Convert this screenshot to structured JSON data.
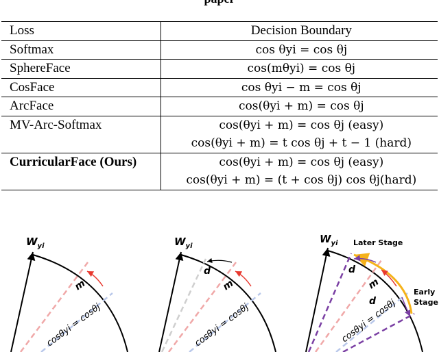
{
  "caption_top": "paper",
  "table": {
    "headers": [
      "Loss",
      "Decision Boundary"
    ],
    "rows": [
      {
        "loss": "Softmax",
        "boundary": "cos θyi = cos θj"
      },
      {
        "loss": "SphereFace",
        "boundary": "cos(mθyi) = cos θj"
      },
      {
        "loss": "CosFace",
        "boundary": "cos θyi − m = cos θj"
      },
      {
        "loss": "ArcFace",
        "boundary": "cos(θyi + m) = cos θj"
      },
      {
        "loss": "MV-Arc-Softmax",
        "boundary": "cos(θyi + m) = cos θj (easy)",
        "boundary2": "cos(θyi + m) = t cos θj + t − 1 (hard)"
      },
      {
        "loss": "CurricularFace (Ours)",
        "boundary": "cos(θyi + m) = cos θj (easy)",
        "boundary2": "cos(θyi + m) = (t + cos θj) cos θj(hard)"
      }
    ]
  },
  "figures": {
    "weight_label": "W",
    "weight_sub": "yi",
    "m_label": "m",
    "d_label": "d",
    "boundary_label": "cosθyi = cosθj",
    "later_stage": "Later Stage",
    "early_stage_1": "Early",
    "early_stage_2": "Stage",
    "colors": {
      "pink": "#f0a8a8",
      "lightblue": "#b9c8ea",
      "gray": "#cfcfcf",
      "purple": "#7a3fa3",
      "orange": "#f5b21a"
    }
  }
}
